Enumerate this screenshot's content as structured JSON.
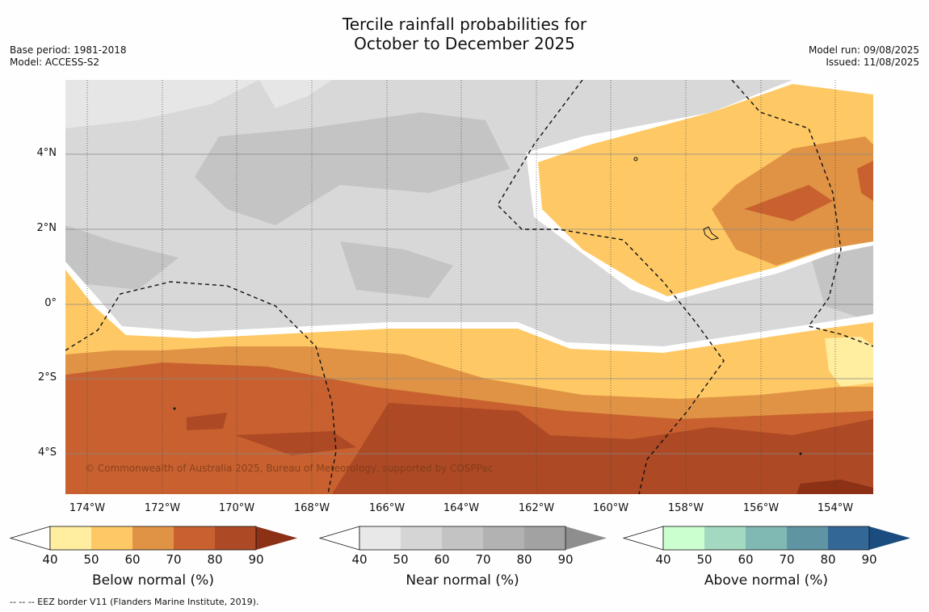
{
  "title": {
    "line1": "Tercile rainfall probabilities for",
    "line2": "October to December 2025"
  },
  "meta_left": {
    "base_period": "Base period: 1981-2018",
    "model": "Model: ACCESS-S2"
  },
  "meta_right": {
    "model_run": "Model run: 09/08/2025",
    "issued": "Issued: 11/08/2025"
  },
  "map": {
    "copyright": "© Commonwealth of Australia 2025, Bureau of Meteorology, supported by COSPPac",
    "lat_labels": [
      "4°N",
      "2°N",
      "0°",
      "2°S",
      "4°S"
    ],
    "lon_labels": [
      "174°W",
      "172°W",
      "170°W",
      "168°W",
      "166°W",
      "164°W",
      "162°W",
      "160°W",
      "158°W",
      "156°W",
      "154°W"
    ],
    "background_color": "#d8d8d8"
  },
  "colorbars": [
    {
      "title": "Below normal (%)",
      "ticks": [
        "40",
        "50",
        "60",
        "70",
        "80",
        "90"
      ],
      "colors": [
        "#ffffff",
        "#ffeda0",
        "#fec965",
        "#e09344",
        "#c8612f",
        "#ad4924",
        "#8c3016"
      ]
    },
    {
      "title": "Near normal (%)",
      "ticks": [
        "40",
        "50",
        "60",
        "70",
        "80",
        "90"
      ],
      "colors": [
        "#ffffff",
        "#e8e8e8",
        "#d5d5d5",
        "#c3c3c3",
        "#b2b2b2",
        "#a2a2a2",
        "#8e8e8e"
      ]
    },
    {
      "title": "Above normal (%)",
      "ticks": [
        "40",
        "50",
        "60",
        "70",
        "80",
        "90"
      ],
      "colors": [
        "#ffffff",
        "#ccffd0",
        "#a3d9c0",
        "#80b8b3",
        "#5f95a3",
        "#336796",
        "#1a4c80"
      ]
    }
  ],
  "footnote": "--  --  -- EEZ border V11 (Flanders Marine Institute, 2019)."
}
